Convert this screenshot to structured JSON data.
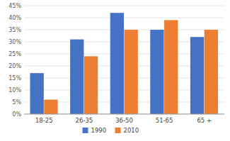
{
  "chart_data": {
    "type": "bar",
    "categories": [
      "18-25",
      "26-35",
      "36-50",
      "51-65",
      "65 +"
    ],
    "series": [
      {
        "name": "1990",
        "color": "#4472C4",
        "values": [
          17,
          31,
          42,
          35,
          32
        ]
      },
      {
        "name": "2010",
        "color": "#ED7D31",
        "values": [
          6,
          24,
          35,
          39,
          35
        ]
      }
    ],
    "ylim": [
      0,
      45
    ],
    "yticks": [
      {
        "value": 0,
        "label": "0%"
      },
      {
        "value": 5,
        "label": "5%"
      },
      {
        "value": 10,
        "label": "10%"
      },
      {
        "value": 15,
        "label": "15%"
      },
      {
        "value": 20,
        "label": "20%"
      },
      {
        "value": 25,
        "label": "25%"
      },
      {
        "value": 30,
        "label": "30%"
      },
      {
        "value": 35,
        "label": "35%"
      },
      {
        "value": 40,
        "label": "40%"
      },
      {
        "value": 45,
        "label": "45%"
      }
    ],
    "grid": true,
    "legend": "bottom"
  }
}
